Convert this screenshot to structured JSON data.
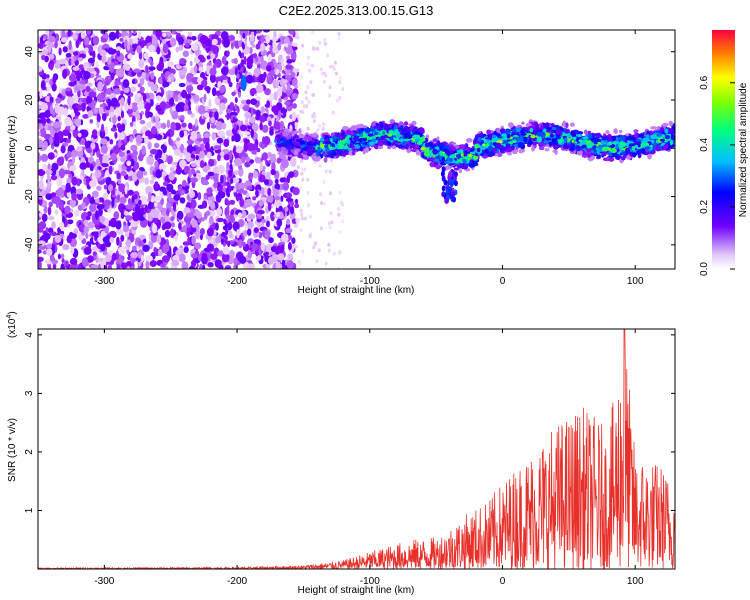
{
  "title": "C2E2.2025.313.00.15.G13",
  "chart_data": [
    {
      "type": "heatmap",
      "xlabel": "Height of straight line (km)",
      "ylabel": "Frequency (Hz)",
      "xlim": [
        -350,
        130
      ],
      "ylim": [
        -50,
        49
      ],
      "xticks": [
        -300,
        -200,
        -100,
        0,
        100
      ],
      "xtick_labels": [
        "-300",
        "-200",
        "-100",
        "0",
        "100"
      ],
      "yticks": [
        -40,
        -20,
        0,
        20,
        40
      ],
      "ytick_labels": [
        "-40",
        "-20",
        "0",
        "20",
        "40"
      ],
      "colorbar": {
        "label": "Normalized spectral amplitude",
        "range": [
          0.0,
          0.77
        ],
        "ticks": [
          0.0,
          0.2,
          0.4,
          0.6
        ],
        "tick_labels": [
          "0.0",
          "0.2",
          "0.4",
          "0.6"
        ],
        "colormap": [
          "#ffffff",
          "#e8c8f8",
          "#8000ff",
          "#0000ff",
          "#00c0ff",
          "#00ff80",
          "#80ff00",
          "#ffff00",
          "#ff8000",
          "#ff0040"
        ]
      },
      "regions": [
        {
          "x": [
            -350,
            -155
          ],
          "description_value": "broadband noise, amplitude ~0.05-0.15 across all frequencies"
        },
        {
          "x": [
            -155,
            -120
          ],
          "description_value": "sparse faint speckle"
        },
        {
          "x": [
            -170,
            130
          ],
          "center_freq_hz": 3,
          "band_halfwidth_hz": 7,
          "peak_amplitude": 0.6
        }
      ],
      "features": [
        {
          "name": "streak",
          "x": [
            -210,
            -195
          ],
          "y": [
            -40,
            48
          ],
          "amplitude": 0.15
        },
        {
          "name": "spot",
          "x": -195,
          "y": 27,
          "amplitude": 0.3
        },
        {
          "name": "dip",
          "x": -40,
          "y": -15,
          "amplitude": 0.3
        }
      ]
    },
    {
      "type": "line",
      "xlabel": "Height of straight line (km)",
      "ylabel": "SNR (10 * v/v)",
      "y_scale_label": "(x10",
      "y_scale_exp": "4",
      "xlim": [
        -350,
        130
      ],
      "ylim": [
        0,
        4.1
      ],
      "xticks": [
        -300,
        -200,
        -100,
        0,
        100
      ],
      "xtick_labels": [
        "-300",
        "-200",
        "-100",
        "0",
        "100"
      ],
      "yticks": [
        1,
        2,
        3,
        4
      ],
      "ytick_labels": [
        "1",
        "2",
        "3",
        "4"
      ],
      "color": "#e8302a",
      "envelope": {
        "x": [
          -350,
          -200,
          -150,
          -120,
          -100,
          -70,
          -50,
          -30,
          -10,
          0,
          20,
          40,
          60,
          80,
          92,
          100,
          120,
          130
        ],
        "y": [
          0.02,
          0.03,
          0.06,
          0.15,
          0.3,
          0.5,
          0.55,
          0.9,
          1.2,
          1.5,
          2.0,
          2.5,
          2.8,
          2.4,
          4.1,
          2.0,
          1.8,
          1.4
        ]
      }
    }
  ]
}
